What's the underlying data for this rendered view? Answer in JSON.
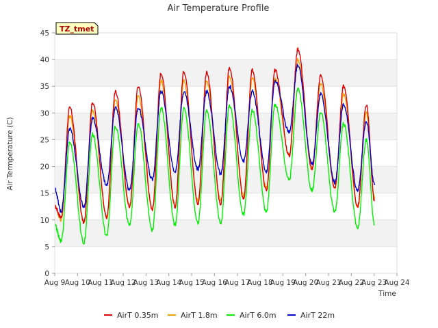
{
  "chart_data": {
    "type": "line",
    "title": "Air Temperature Profile",
    "xlabel": "Time",
    "ylabel": "Air Termperature (C)",
    "ylim": [
      0,
      45
    ],
    "yticks": [
      0,
      5,
      10,
      15,
      20,
      25,
      30,
      35,
      40,
      45
    ],
    "xlim": [
      0,
      15
    ],
    "xtick_labels": [
      "Aug 9",
      "Aug 10",
      "Aug 11",
      "Aug 12",
      "Aug 13",
      "Aug 14",
      "Aug 15",
      "Aug 16",
      "Aug 17",
      "Aug 18",
      "Aug 19",
      "Aug 20",
      "Aug 21",
      "Aug 22",
      "Aug 23",
      "Aug 24"
    ],
    "grid": "horizontal bands",
    "legend_position": "bottom",
    "tag_label": "TZ_tmet",
    "series": [
      {
        "name": "AirT 0.35m",
        "color": "#dd0000",
        "daily_min": [
          10.5,
          9.5,
          10.5,
          12.5,
          12.0,
          12.5,
          13.0,
          13.0,
          14.0,
          15.5,
          22.0,
          19.5,
          16.0,
          12.5
        ],
        "daily_max": [
          31.0,
          32.0,
          34.0,
          35.0,
          37.5,
          37.8,
          37.5,
          38.5,
          38.0,
          38.0,
          42.0,
          37.0,
          35.0,
          31.5
        ],
        "start": 12.5,
        "end": 13.5
      },
      {
        "name": "AirT 1.8m",
        "color": "#f0a000",
        "daily_min": [
          10.0,
          9.5,
          10.5,
          12.5,
          12.0,
          12.5,
          13.5,
          13.5,
          14.5,
          16.0,
          22.0,
          19.5,
          16.0,
          12.5
        ],
        "daily_max": [
          29.5,
          30.5,
          32.5,
          33.0,
          36.0,
          36.0,
          36.0,
          37.0,
          36.5,
          36.5,
          40.0,
          35.5,
          33.5,
          30.0
        ],
        "start": 12.5,
        "end": 14.0
      },
      {
        "name": "AirT 6.0m",
        "color": "#00ee00",
        "daily_min": [
          6.0,
          5.8,
          7.0,
          9.0,
          8.0,
          9.0,
          9.5,
          9.5,
          11.0,
          11.5,
          17.5,
          15.5,
          11.5,
          8.5
        ],
        "daily_max": [
          24.5,
          26.0,
          27.5,
          28.0,
          31.0,
          31.0,
          30.5,
          31.5,
          30.5,
          31.5,
          34.5,
          30.0,
          28.0,
          25.0
        ],
        "start": 9.0,
        "end": 9.0
      },
      {
        "name": "AirT 22m",
        "color": "#0000cc",
        "daily_min": [
          11.5,
          12.5,
          16.5,
          15.5,
          17.5,
          19.0,
          19.5,
          18.5,
          21.0,
          19.0,
          26.5,
          20.5,
          17.0,
          15.5
        ],
        "daily_max": [
          27.0,
          29.0,
          31.0,
          31.0,
          34.0,
          34.0,
          34.0,
          35.0,
          34.0,
          36.0,
          39.0,
          33.5,
          31.5,
          28.5
        ],
        "start": 15.8,
        "end": 16.5
      }
    ]
  }
}
